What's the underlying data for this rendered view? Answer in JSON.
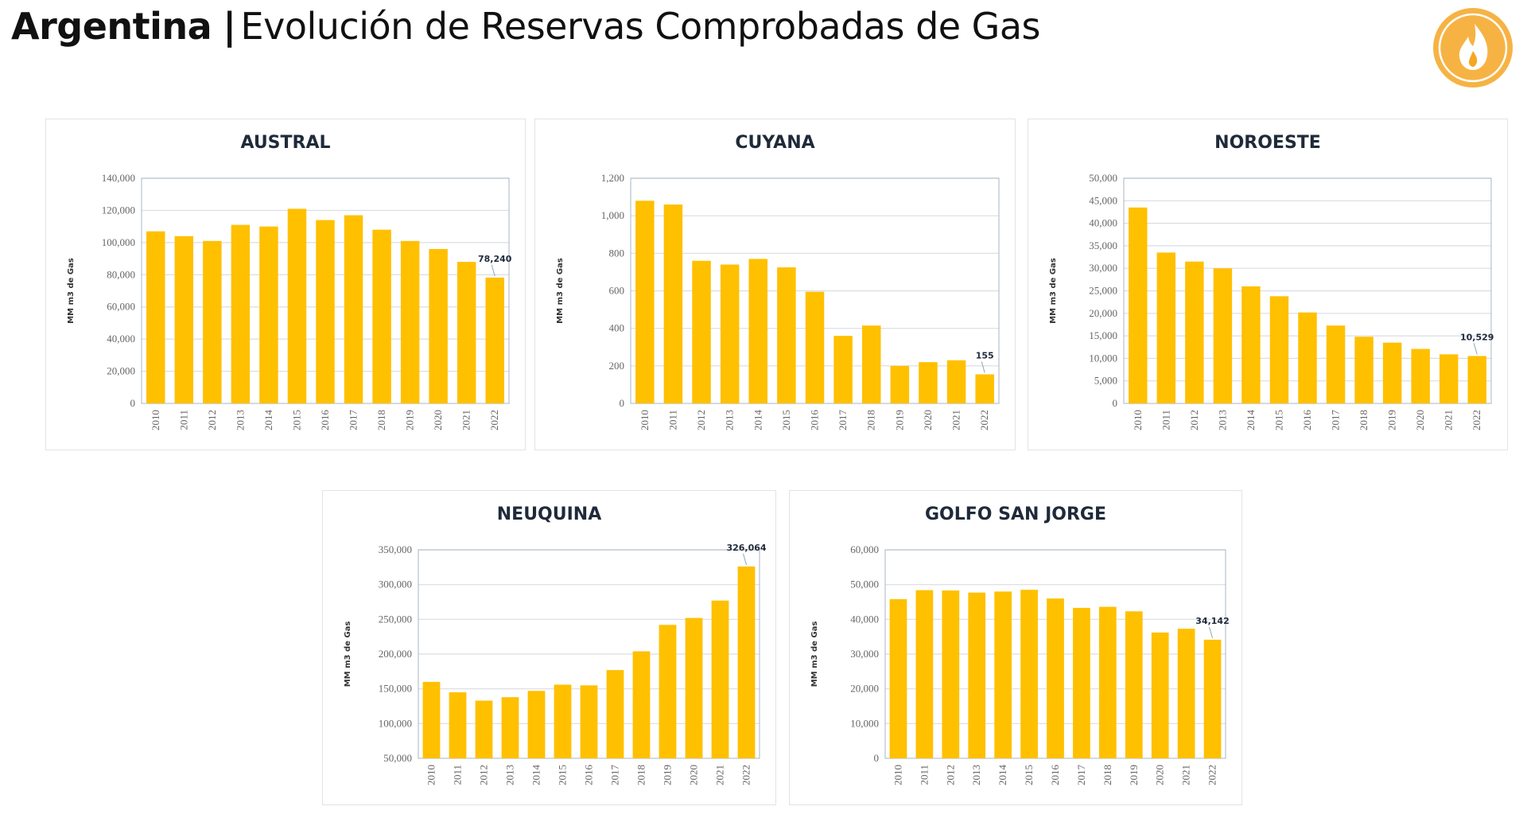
{
  "header": {
    "country": "Argentina",
    "separator": "|",
    "subtitle": "Evolución de Reservas Comprobadas de Gas",
    "logo_icon": "gas-flame-icon",
    "logo_color": "#F5A623"
  },
  "colors": {
    "bar": "#FFC000",
    "grid": "#d9dde3",
    "axis": "#a8b4c4"
  },
  "chart_data": [
    {
      "type": "bar",
      "title": "AUSTRAL",
      "ylabel": "MM m3 de Gas",
      "xlabel": "",
      "categories": [
        "2010",
        "2011",
        "2012",
        "2013",
        "2014",
        "2015",
        "2016",
        "2017",
        "2018",
        "2019",
        "2020",
        "2021",
        "2022"
      ],
      "values": [
        107000,
        104000,
        101000,
        111000,
        110000,
        121000,
        114000,
        117000,
        108000,
        101000,
        96000,
        88000,
        78240
      ],
      "ylim": [
        0,
        140000
      ],
      "yticks": [
        "0",
        "20,000",
        "40,000",
        "60,000",
        "80,000",
        "100,000",
        "120,000",
        "140,000"
      ],
      "ytick_values": [
        0,
        20000,
        40000,
        60000,
        80000,
        100000,
        120000,
        140000
      ],
      "annotation": {
        "category": "2022",
        "text": "78,240"
      },
      "grid": true
    },
    {
      "type": "bar",
      "title": "CUYANA",
      "ylabel": "MM m3 de Gas",
      "xlabel": "",
      "categories": [
        "2010",
        "2011",
        "2012",
        "2013",
        "2014",
        "2015",
        "2016",
        "2017",
        "2018",
        "2019",
        "2020",
        "2021",
        "2022"
      ],
      "values": [
        1080,
        1060,
        760,
        740,
        770,
        725,
        595,
        360,
        415,
        200,
        220,
        230,
        155
      ],
      "ylim": [
        0,
        1200
      ],
      "yticks": [
        "0",
        "200",
        "400",
        "600",
        "800",
        "1,000",
        "1,200"
      ],
      "ytick_values": [
        0,
        200,
        400,
        600,
        800,
        1000,
        1200
      ],
      "annotation": {
        "category": "2022",
        "text": "155"
      },
      "grid": true
    },
    {
      "type": "bar",
      "title": "NOROESTE",
      "ylabel": "MM m3 de Gas",
      "xlabel": "",
      "categories": [
        "2010",
        "2011",
        "2012",
        "2013",
        "2014",
        "2015",
        "2016",
        "2017",
        "2018",
        "2019",
        "2020",
        "2021",
        "2022"
      ],
      "values": [
        43500,
        33500,
        31500,
        30000,
        26000,
        23800,
        20200,
        17300,
        14800,
        13500,
        12100,
        10900,
        10529
      ],
      "ylim": [
        0,
        50000
      ],
      "yticks": [
        "0",
        "5,000",
        "10,000",
        "15,000",
        "20,000",
        "25,000",
        "30,000",
        "35,000",
        "40,000",
        "45,000",
        "50,000"
      ],
      "ytick_values": [
        0,
        5000,
        10000,
        15000,
        20000,
        25000,
        30000,
        35000,
        40000,
        45000,
        50000
      ],
      "annotation": {
        "category": "2022",
        "text": "10,529"
      },
      "grid": true
    },
    {
      "type": "bar",
      "title": "NEUQUINA",
      "ylabel": "MM m3 de Gas",
      "xlabel": "",
      "categories": [
        "2010",
        "2011",
        "2012",
        "2013",
        "2014",
        "2015",
        "2016",
        "2017",
        "2018",
        "2019",
        "2020",
        "2021",
        "2022"
      ],
      "values": [
        160000,
        145000,
        133000,
        138000,
        147000,
        156000,
        155000,
        177000,
        204000,
        242000,
        252000,
        277000,
        326064
      ],
      "ylim": [
        50000,
        350000
      ],
      "yticks": [
        "50,000",
        "100,000",
        "150,000",
        "200,000",
        "250,000",
        "300,000",
        "350,000"
      ],
      "ytick_values": [
        50000,
        100000,
        150000,
        200000,
        250000,
        300000,
        350000
      ],
      "annotation": {
        "category": "2022",
        "text": "326,064"
      },
      "grid": true
    },
    {
      "type": "bar",
      "title": "GOLFO SAN JORGE",
      "ylabel": "MM m3 de Gas",
      "xlabel": "",
      "categories": [
        "2010",
        "2011",
        "2012",
        "2013",
        "2014",
        "2015",
        "2016",
        "2017",
        "2018",
        "2019",
        "2020",
        "2021",
        "2022"
      ],
      "values": [
        45800,
        48400,
        48300,
        47700,
        48000,
        48500,
        46000,
        43300,
        43600,
        42300,
        36200,
        37300,
        34142
      ],
      "ylim": [
        0,
        60000
      ],
      "yticks": [
        "0",
        "10,000",
        "20,000",
        "30,000",
        "40,000",
        "50,000",
        "60,000"
      ],
      "ytick_values": [
        0,
        10000,
        20000,
        30000,
        40000,
        50000,
        60000
      ],
      "annotation": {
        "category": "2022",
        "text": "34,142"
      },
      "grid": true
    }
  ]
}
